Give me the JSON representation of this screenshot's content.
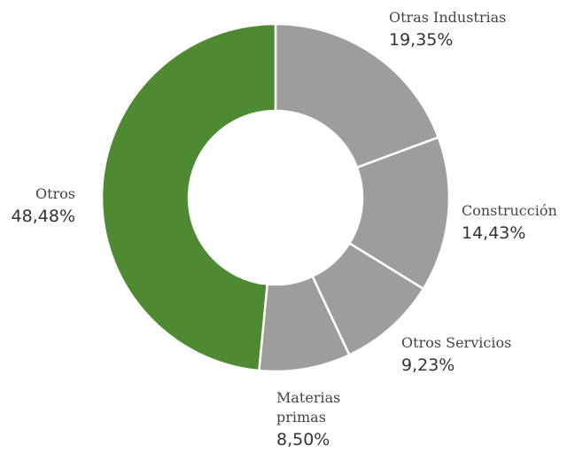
{
  "chart_data": {
    "type": "pie",
    "title": "",
    "slices": [
      {
        "label": "Otras Industrias",
        "value": 19.35,
        "value_label": "19,35%",
        "color": "#9d9d9c"
      },
      {
        "label": "Construcción",
        "value": 14.43,
        "value_label": "14,43%",
        "color": "#9d9d9c"
      },
      {
        "label": "Otros Servicios",
        "value": 9.23,
        "value_label": "9,23%",
        "color": "#9d9d9c"
      },
      {
        "label": "Materias primas",
        "value": 8.5,
        "value_label": "8,50%",
        "color": "#9d9d9c"
      },
      {
        "label": "Otros",
        "value": 48.48,
        "value_label": "48,48%",
        "color": "#4e8a32"
      }
    ]
  }
}
